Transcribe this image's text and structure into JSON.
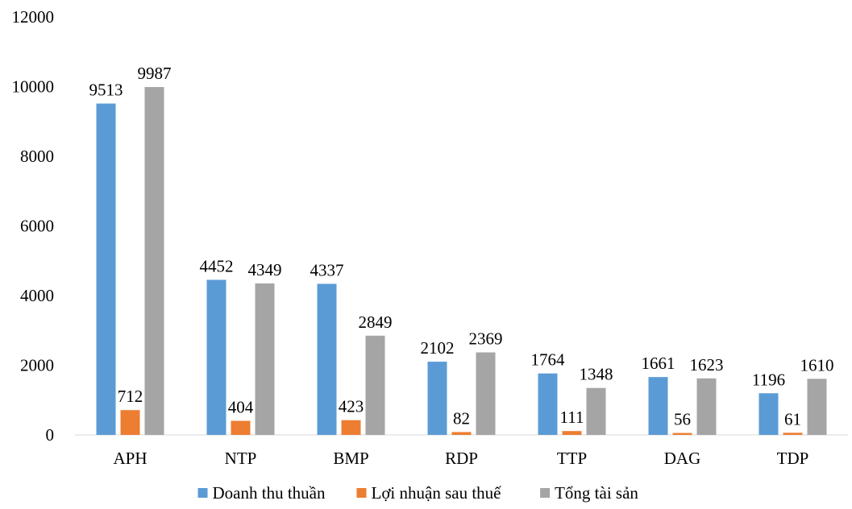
{
  "chart_data": {
    "type": "bar",
    "categories": [
      "APH",
      "NTP",
      "BMP",
      "RDP",
      "TTP",
      "DAG",
      "TDP"
    ],
    "series": [
      {
        "name": "Doanh thu thuần",
        "color": "#5B9BD5",
        "values": [
          9513,
          4452,
          4337,
          2102,
          1764,
          1661,
          1196
        ]
      },
      {
        "name": "Lợi nhuận sau thuế",
        "color": "#ED7D31",
        "values": [
          712,
          404,
          423,
          82,
          111,
          56,
          61
        ]
      },
      {
        "name": "Tổng tài sản",
        "color": "#A5A5A5",
        "values": [
          9987,
          4349,
          2849,
          2369,
          1348,
          1623,
          1610
        ]
      }
    ],
    "y_ticks": [
      "0",
      "2000",
      "4000",
      "6000",
      "8000",
      "10000",
      "12000"
    ],
    "ylim": [
      0,
      12000
    ],
    "grid": false,
    "legend": "bottom"
  }
}
